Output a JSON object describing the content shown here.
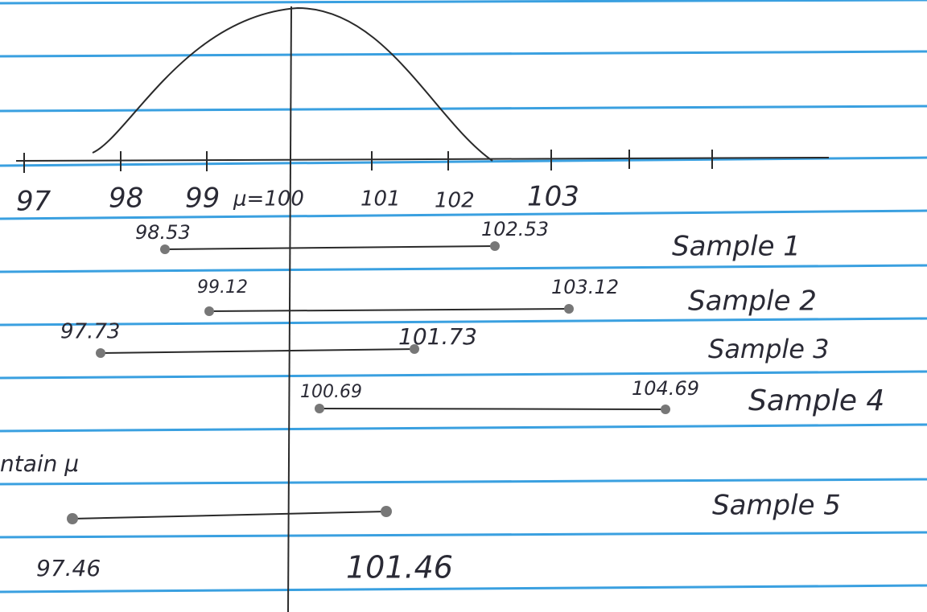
{
  "axis": {
    "labels": [
      "97",
      "98",
      "99",
      "μ=100",
      "101",
      "102",
      "103"
    ]
  },
  "samples": [
    {
      "name": "Sample 1",
      "lower": "98.53",
      "upper": "102.53"
    },
    {
      "name": "Sample 2",
      "lower": "99.12",
      "upper": "103.12"
    },
    {
      "name": "Sample 3",
      "lower": "97.73",
      "upper": "101.73"
    },
    {
      "name": "Sample 4",
      "lower": "100.69",
      "upper": "104.69"
    },
    {
      "name": "Sample 5",
      "lower": "97.46",
      "upper": "101.46"
    }
  ],
  "note": "ntain μ"
}
